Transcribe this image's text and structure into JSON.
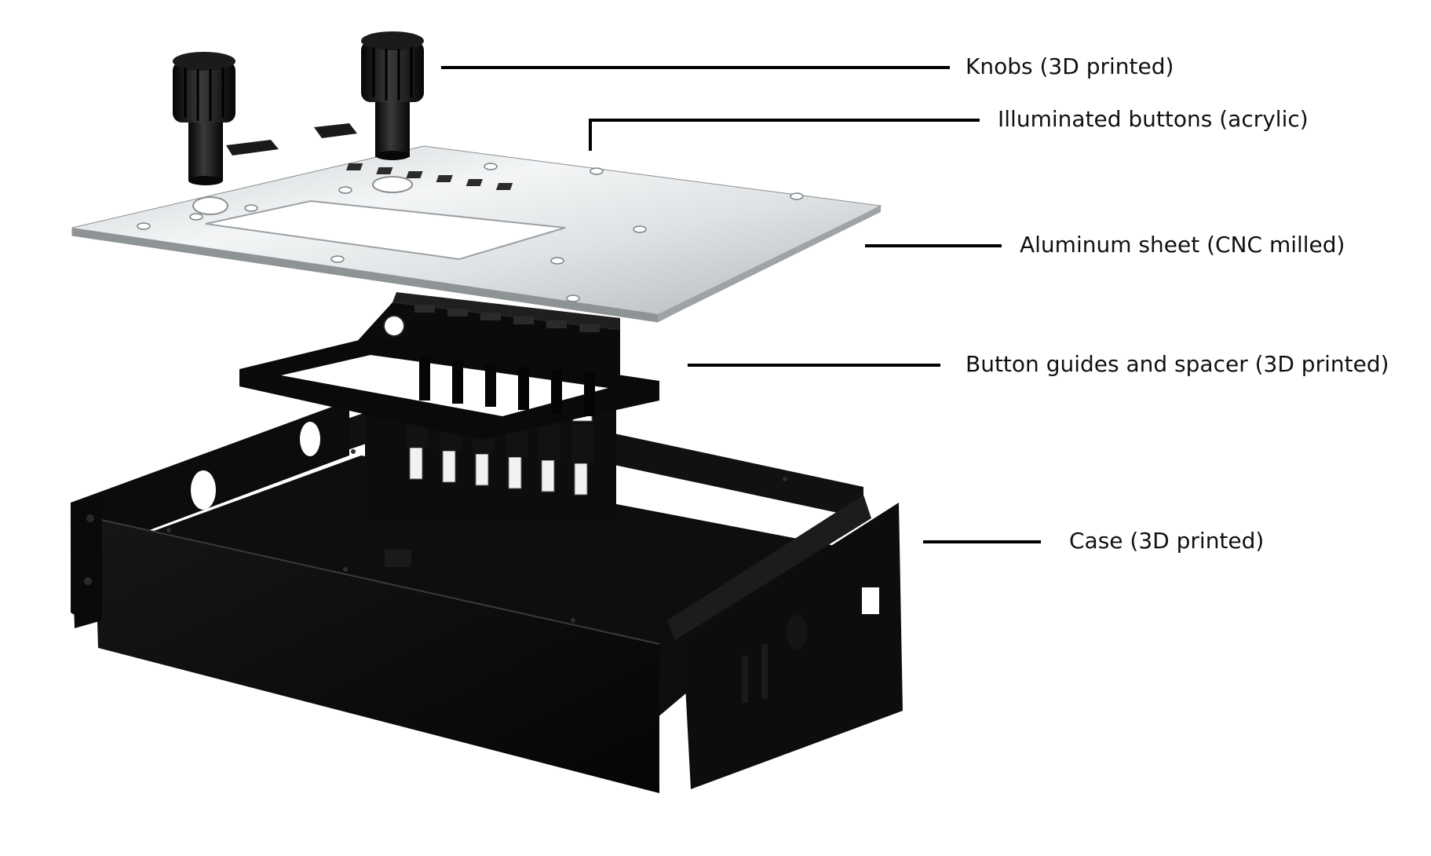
{
  "labels": {
    "knobs": "Knobs (3D printed)",
    "buttons": "Illuminated buttons (acrylic)",
    "aluminum": "Aluminum sheet (CNC milled)",
    "guides": "Button guides and spacer (3D printed)",
    "case": "Case (3D printed)"
  },
  "colors": {
    "background": "#ffffff",
    "leader_line": "#000000",
    "label_text": "#111111",
    "case_black": "#0b0b0b",
    "aluminum_light": "#eef0f1",
    "aluminum_dark": "#b8bcbf"
  },
  "icons": {
    "knob": "cylindrical-knurled-knob",
    "button": "rectangular-acrylic-button",
    "screw_hole": "countersunk-screw-hole"
  }
}
